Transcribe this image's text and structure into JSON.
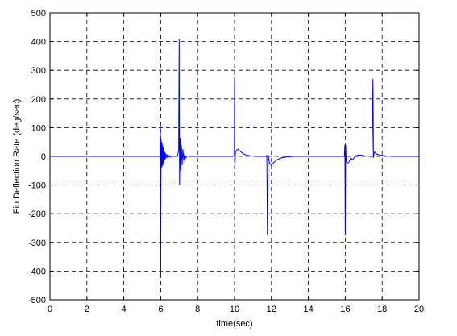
{
  "chart_data": {
    "type": "line",
    "title": "",
    "xlabel": "time(sec)",
    "ylabel": "Fin Deflection Rate (deg/sec)",
    "xlim": [
      0,
      20
    ],
    "ylim": [
      -500,
      500
    ],
    "xticks": [
      0,
      2,
      4,
      6,
      8,
      10,
      12,
      14,
      16,
      18,
      20
    ],
    "yticks": [
      -500,
      -400,
      -300,
      -200,
      -100,
      0,
      100,
      200,
      300,
      400,
      500
    ],
    "xtick_labels": [
      "0",
      "2",
      "4",
      "6",
      "8",
      "10",
      "12",
      "14",
      "16",
      "18",
      "20"
    ],
    "ytick_labels": [
      "-500",
      "-400",
      "-300",
      "-200",
      "-100",
      "0",
      "100",
      "200",
      "300",
      "400",
      "500"
    ],
    "grid": true,
    "grid_style": "dashed",
    "line_color": "#0000ff",
    "series": [
      {
        "x": [
          0,
          5.9,
          5.96,
          5.98,
          6.0,
          6.02,
          6.04,
          6.06,
          6.08,
          6.1,
          6.12,
          6.14,
          6.16,
          6.18,
          6.2,
          6.22,
          6.25,
          6.28,
          6.32,
          6.36,
          6.4,
          6.45,
          6.5,
          6.6,
          6.9,
          6.97,
          7.0,
          7.02,
          7.05,
          7.08,
          7.12,
          7.16,
          7.2,
          7.25,
          7.3,
          7.35,
          7.45,
          7.6,
          9.95,
          9.99,
          10.0,
          10.02,
          10.05,
          10.1,
          10.2,
          10.35,
          10.5,
          10.7,
          11.0,
          11.3,
          11.6,
          11.72,
          11.75,
          11.78,
          11.82,
          11.9,
          12.0,
          12.15,
          12.3,
          12.5,
          12.8,
          13.2,
          13.6,
          15.95,
          15.98,
          16.0,
          16.02,
          16.05,
          16.1,
          16.2,
          16.3,
          16.4,
          16.5,
          16.6,
          16.8,
          17.0,
          17.3,
          17.45,
          17.5,
          17.53,
          17.56,
          17.6,
          17.7,
          17.85,
          18.0,
          18.3,
          18.6,
          19.0,
          20
        ],
        "y": [
          0,
          0,
          0,
          110,
          -420,
          60,
          -40,
          50,
          -35,
          40,
          -30,
          30,
          -22,
          22,
          -15,
          15,
          -10,
          10,
          -6,
          6,
          -4,
          3,
          -2,
          0,
          0,
          20,
          410,
          -100,
          65,
          -50,
          40,
          -30,
          25,
          -15,
          10,
          -5,
          2,
          0,
          0,
          0,
          275,
          -35,
          15,
          20,
          25,
          15,
          8,
          3,
          1,
          0,
          0,
          0,
          5,
          -275,
          5,
          -25,
          -30,
          -20,
          -12,
          -6,
          -2,
          0,
          0,
          0,
          40,
          -275,
          40,
          -15,
          -25,
          -20,
          -5,
          -12,
          -3,
          3,
          5,
          2,
          0,
          0,
          270,
          -5,
          10,
          15,
          8,
          5,
          3,
          1,
          0,
          0,
          0
        ]
      }
    ]
  }
}
